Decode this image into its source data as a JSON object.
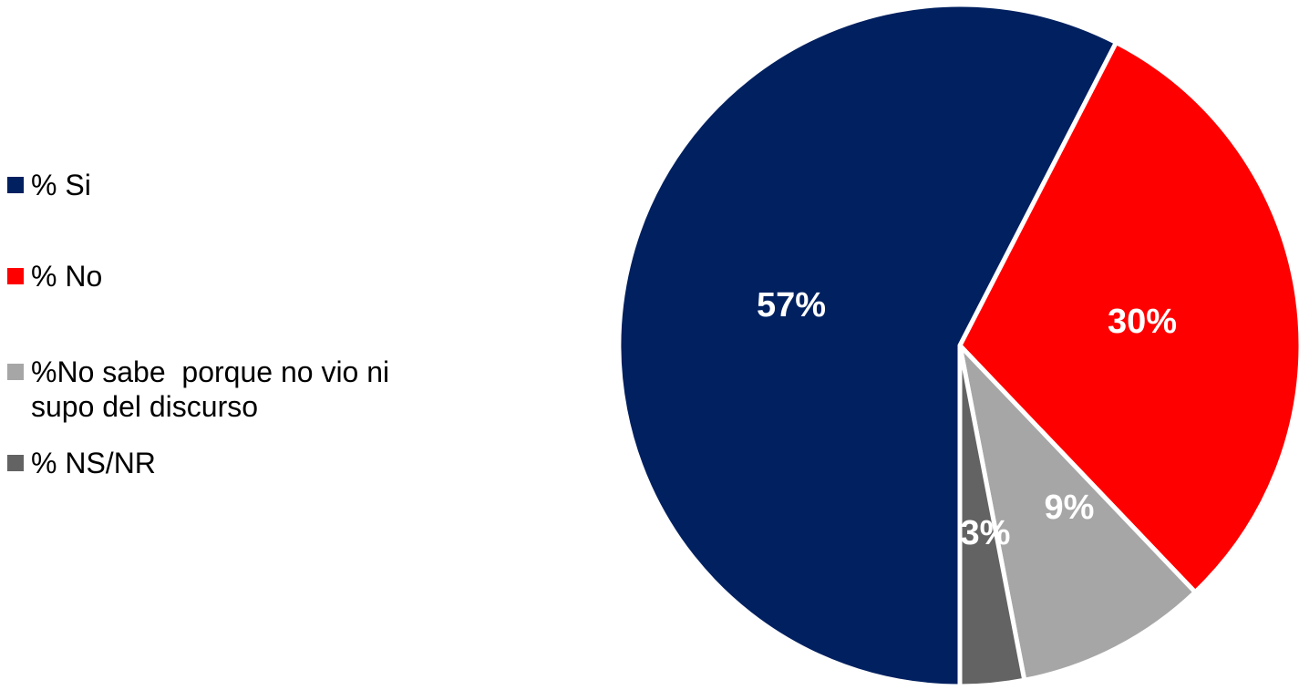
{
  "chart_data": {
    "type": "pie",
    "slices": [
      {
        "name": "% Si",
        "value": 57,
        "label": "57%",
        "color": "#002060"
      },
      {
        "name": "% No",
        "value": 30,
        "label": "30%",
        "color": "#ff0000"
      },
      {
        "name": "%No sabe  porque no vio ni supo del discurso",
        "value": 9,
        "label": "9%",
        "color": "#a6a6a6"
      },
      {
        "name": "% NS/NR",
        "value": 3,
        "label": "3%",
        "color": "#636363"
      }
    ],
    "legend_position": "left",
    "title": ""
  }
}
